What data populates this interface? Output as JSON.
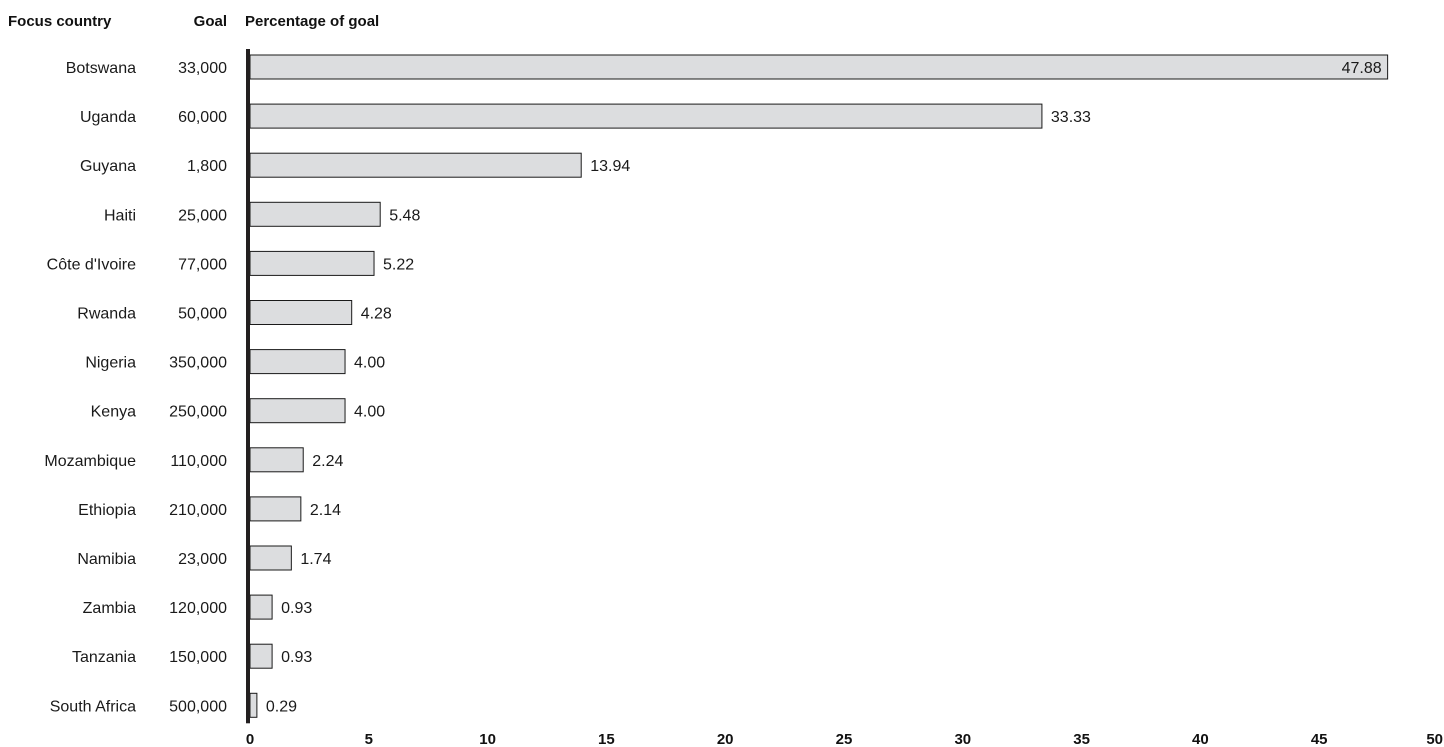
{
  "headers": {
    "country": "Focus country",
    "goal": "Goal",
    "percent": "Percentage of goal"
  },
  "colors": {
    "bar_fill": "#dcdddf",
    "bar_stroke": "#1a1a1a",
    "axis": "#231f20"
  },
  "chart_data": {
    "type": "bar",
    "orientation": "horizontal",
    "categories": [
      "Botswana",
      "Uganda",
      "Guyana",
      "Haiti",
      "Côte d'Ivoire",
      "Rwanda",
      "Nigeria",
      "Kenya",
      "Mozambique",
      "Ethiopia",
      "Namibia",
      "Zambia",
      "Tanzania",
      "South Africa"
    ],
    "goals": [
      "33,000",
      "60,000",
      "1,800",
      "25,000",
      "77,000",
      "50,000",
      "350,000",
      "250,000",
      "110,000",
      "210,000",
      "23,000",
      "120,000",
      "150,000",
      "500,000"
    ],
    "values": [
      47.88,
      33.33,
      13.94,
      5.48,
      5.22,
      4.28,
      4.0,
      4.0,
      2.24,
      2.14,
      1.74,
      0.93,
      0.93,
      0.29
    ],
    "value_labels": [
      "47.88",
      "33.33",
      "13.94",
      "5.48",
      "5.22",
      "4.28",
      "4.00",
      "4.00",
      "2.24",
      "2.14",
      "1.74",
      "0.93",
      "0.93",
      "0.29"
    ],
    "xlim": [
      0,
      50
    ],
    "xticks": [
      "0",
      "5",
      "10",
      "15",
      "20",
      "25",
      "30",
      "35",
      "40",
      "45",
      "50"
    ],
    "grid": false,
    "legend": "none"
  }
}
